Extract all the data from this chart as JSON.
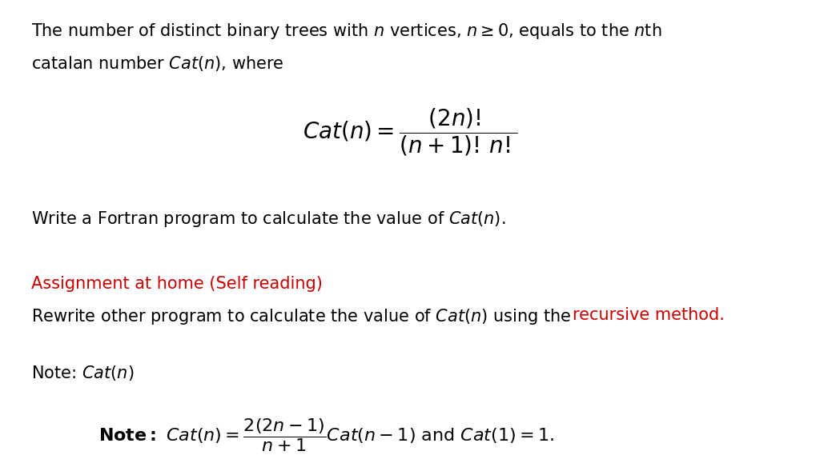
{
  "background_color": "#ffffff",
  "figsize": [
    10.24,
    5.89
  ],
  "dpi": 100,
  "body_fontsize": 15.0,
  "formula_fontsize": 20,
  "note_formula_fontsize": 16,
  "red_color": "#cc0000",
  "black_color": "#000000"
}
